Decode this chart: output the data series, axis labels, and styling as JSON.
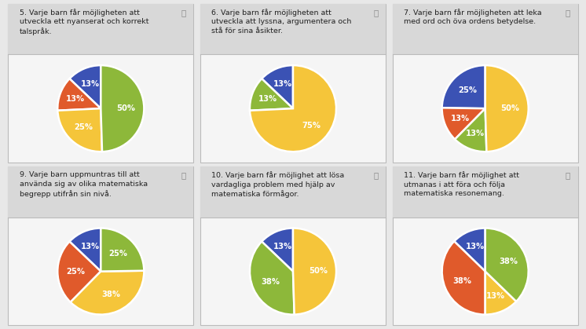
{
  "charts": [
    {
      "title": "5. Varje barn får möjligheten att\nutveckla ett nyanserat och korrekt\ntalspråk.",
      "slices": [
        13,
        13,
        25,
        50
      ],
      "colors": [
        "#3b52b4",
        "#e05a2b",
        "#f5c53a",
        "#8db83a"
      ],
      "labels": [
        "13%",
        "13%",
        "25%",
        "50%"
      ],
      "startangle": 90
    },
    {
      "title": "6. Varje barn får möjligheten att\nutveckla att lyssna, argumentera och\nstå för sina åsikter.",
      "slices": [
        13,
        13,
        75
      ],
      "colors": [
        "#3b52b4",
        "#8db83a",
        "#f5c53a"
      ],
      "labels": [
        "13%",
        "13%",
        "75%"
      ],
      "startangle": 90
    },
    {
      "title": "7. Varje barn får möjligheten att leka\nmed ord och öva ordens betydelse.",
      "slices": [
        25,
        13,
        13,
        50
      ],
      "colors": [
        "#3b52b4",
        "#e05a2b",
        "#8db83a",
        "#f5c53a"
      ],
      "labels": [
        "25%",
        "13%",
        "13%",
        "50%"
      ],
      "startangle": 90
    },
    {
      "title": "9. Varje barn uppmuntras till att\nanvända sig av olika matematiska\nbegrepp utifrån sin nivå.",
      "slices": [
        13,
        25,
        38,
        25
      ],
      "colors": [
        "#3b52b4",
        "#e05a2b",
        "#f5c53a",
        "#8db83a"
      ],
      "labels": [
        "13%",
        "25%",
        "38%",
        "25%"
      ],
      "startangle": 90
    },
    {
      "title": "10. Varje barn får möjlighet att lösa\nvardagliga problem med hjälp av\nmatematiska förmågor.",
      "slices": [
        13,
        38,
        50
      ],
      "colors": [
        "#3b52b4",
        "#8db83a",
        "#f5c53a"
      ],
      "labels": [
        "13%",
        "38%",
        "50%"
      ],
      "startangle": 90
    },
    {
      "title": "11. Varje barn får möjlighet att\nutmanas i att föra och följa\nmatematiska resonemang.",
      "slices": [
        13,
        38,
        13,
        38
      ],
      "colors": [
        "#3b52b4",
        "#e05a2b",
        "#f5c53a",
        "#8db83a"
      ],
      "labels": [
        "13%",
        "38%",
        "13%",
        "38%"
      ],
      "startangle": 90
    }
  ],
  "bg_color": "#e8e8e8",
  "header_color": "#d8d8d8",
  "card_color": "#f5f5f5",
  "border_color": "#bbbbbb",
  "title_fontsize": 6.8,
  "label_fontsize": 7.2,
  "text_color": "#222222",
  "label_color": "#ffffff",
  "ncols": 3,
  "nrows": 2
}
